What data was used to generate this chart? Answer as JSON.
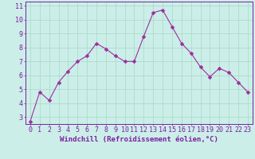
{
  "x": [
    0,
    1,
    2,
    3,
    4,
    5,
    6,
    7,
    8,
    9,
    10,
    11,
    12,
    13,
    14,
    15,
    16,
    17,
    18,
    19,
    20,
    21,
    22,
    23
  ],
  "y": [
    2.7,
    4.8,
    4.2,
    5.5,
    6.3,
    7.0,
    7.4,
    8.3,
    7.9,
    7.4,
    7.0,
    7.0,
    8.8,
    10.5,
    10.7,
    9.5,
    8.3,
    7.6,
    6.6,
    5.9,
    6.5,
    6.2,
    5.5,
    4.8
  ],
  "line_color": "#9b2fa0",
  "marker": "D",
  "marker_size": 2.5,
  "bg_color": "#cceee8",
  "grid_color": "#aaddcc",
  "xlabel": "Windchill (Refroidissement éolien,°C)",
  "ylabel": "",
  "ylim": [
    2.5,
    11.3
  ],
  "xlim": [
    -0.5,
    23.5
  ],
  "yticks": [
    3,
    4,
    5,
    6,
    7,
    8,
    9,
    10,
    11
  ],
  "xticks": [
    0,
    1,
    2,
    3,
    4,
    5,
    6,
    7,
    8,
    9,
    10,
    11,
    12,
    13,
    14,
    15,
    16,
    17,
    18,
    19,
    20,
    21,
    22,
    23
  ],
  "tick_color": "#7b1fa2",
  "label_color": "#7b1fa2",
  "border_color": "#7b1fa2",
  "font_size": 6,
  "xlabel_fontsize": 6.5
}
